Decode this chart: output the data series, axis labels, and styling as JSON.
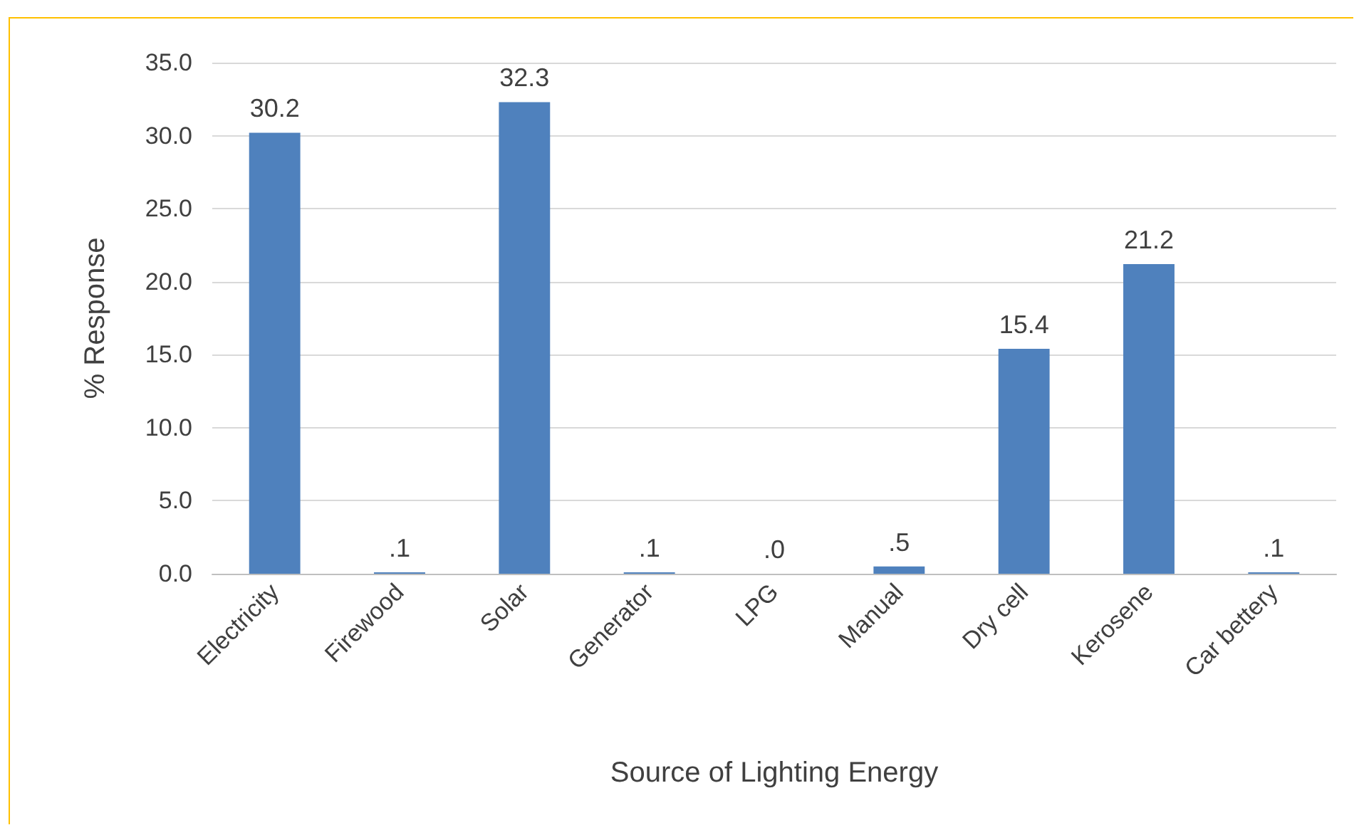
{
  "chart_data": {
    "type": "bar",
    "xlabel": "Source of Lighting Energy",
    "ylabel": "% Response",
    "categories": [
      "Electricity",
      "Firewood",
      "Solar",
      "Generator",
      "LPG",
      "Manual",
      "Dry cell",
      "Kerosene",
      "Car bettery"
    ],
    "values": [
      30.2,
      0.1,
      32.3,
      0.1,
      0.0,
      0.5,
      15.4,
      21.2,
      0.1
    ],
    "value_labels": [
      "30.2",
      ".1",
      "32.3",
      ".1",
      ".0",
      ".5",
      "15.4",
      "21.2",
      ".1"
    ],
    "color": "#4f81bd",
    "ylim": [
      0,
      35
    ],
    "yticks": [
      {
        "value": 0,
        "label": "0.0"
      },
      {
        "value": 5,
        "label": "5.0"
      },
      {
        "value": 10,
        "label": "10.0"
      },
      {
        "value": 15,
        "label": "15.0"
      },
      {
        "value": 20,
        "label": "20.0"
      },
      {
        "value": 25,
        "label": "25.0"
      },
      {
        "value": 30,
        "label": "30.0"
      },
      {
        "value": 35,
        "label": "35.0"
      }
    ],
    "grid": "y"
  }
}
